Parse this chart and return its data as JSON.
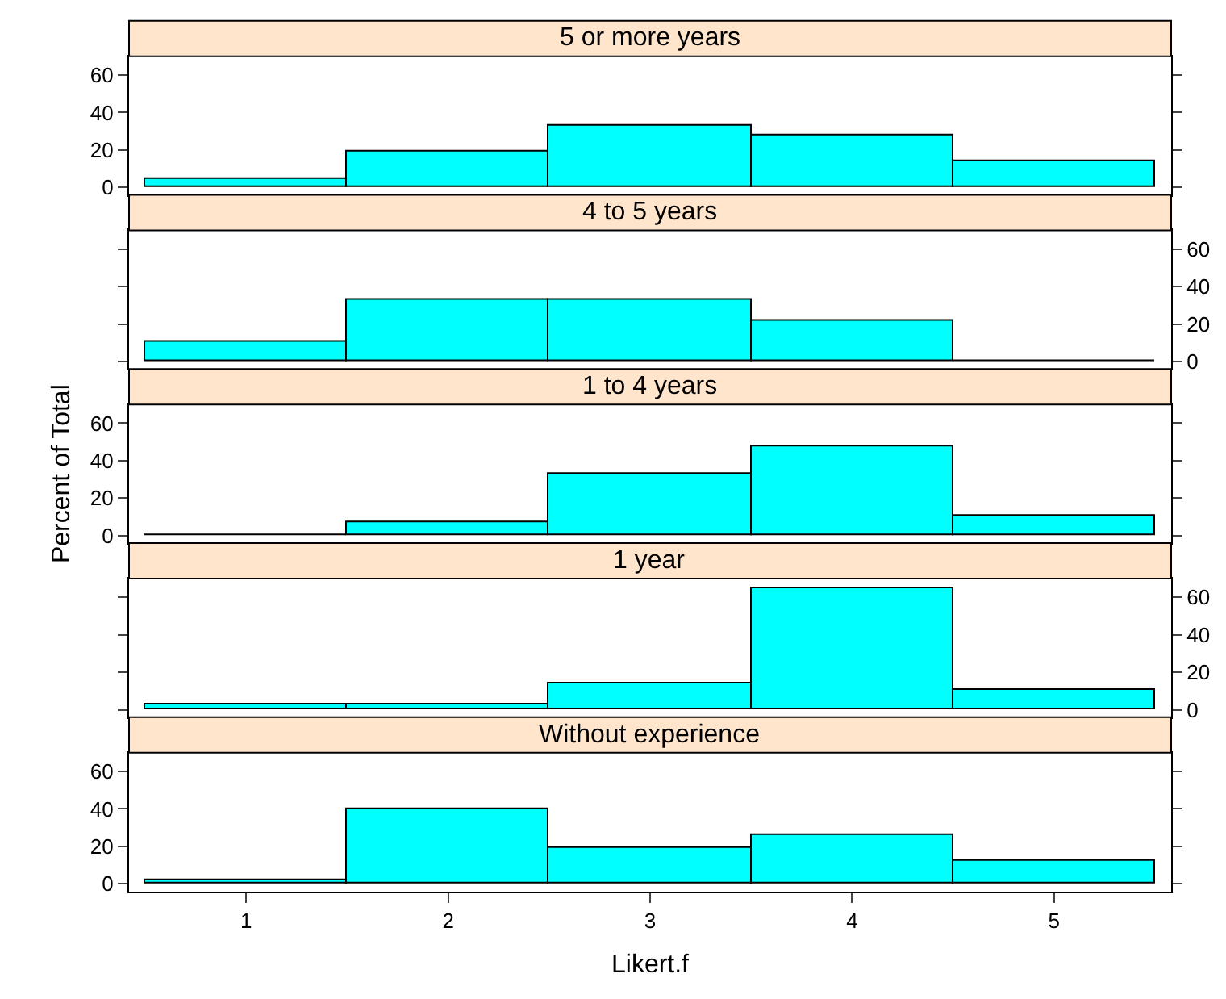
{
  "chart_data": [
    {
      "type": "histogram",
      "title": "5 or more years",
      "bins": [
        0.5,
        1.5,
        2.5,
        3.5,
        4.5,
        5.5
      ],
      "values": [
        5,
        19,
        33,
        28,
        14
      ],
      "color": "#00ffff",
      "xlim": [
        0.42,
        5.58
      ],
      "ylim": [
        -4,
        70
      ],
      "yticks": [
        0,
        20,
        40,
        60
      ],
      "tick_labels": "y"
    },
    {
      "type": "histogram",
      "title": "4 to 5 years",
      "bins": [
        0.5,
        1.5,
        2.5,
        3.5,
        4.5,
        5.5
      ],
      "values": [
        11,
        33,
        33,
        22,
        0
      ],
      "colors": [
        "#00ffff",
        "#00ffff",
        "#00ffff",
        "#00ffff",
        "#000000"
      ],
      "xlim": [
        0.42,
        5.58
      ],
      "ylim": [
        -4,
        70
      ],
      "yticks": [
        0,
        20,
        40,
        60
      ],
      "tick_labels": "y"
    },
    {
      "type": "histogram",
      "title": "1 to 4 years",
      "ylabel": "Percent of Total",
      "bins": [
        0.5,
        1.5,
        2.5,
        3.5,
        4.5,
        5.5
      ],
      "values": [
        0,
        7,
        33,
        48,
        11
      ],
      "colors": [
        "#000000",
        "#00ffff",
        "#00ffff",
        "#00ffff",
        "#00ffff"
      ],
      "xlim": [
        0.42,
        5.58
      ],
      "ylim": [
        -4,
        70
      ],
      "yticks": [
        0,
        20,
        40,
        60
      ],
      "tick_labels": "y"
    },
    {
      "type": "histogram",
      "title": "1 year",
      "bins": [
        0.5,
        1.5,
        2.5,
        3.5,
        4.5,
        5.5
      ],
      "values": [
        3,
        3,
        14,
        65,
        11
      ],
      "color": "#00ffff",
      "xlim": [
        0.42,
        5.58
      ],
      "ylim": [
        -4,
        70
      ],
      "yticks": [
        0,
        20,
        40,
        60
      ],
      "tick_labels": "y"
    },
    {
      "type": "histogram",
      "title": "Without experience",
      "xlabel": "Likert.f",
      "bins": [
        0.5,
        1.5,
        2.5,
        3.5,
        4.5,
        5.5
      ],
      "values": [
        2,
        40,
        19,
        26,
        12
      ],
      "color": "#00ffff",
      "xlim": [
        0.42,
        5.58
      ],
      "ylim": [
        -4,
        70
      ],
      "xticks": [
        1,
        2,
        3,
        4,
        5
      ],
      "yticks": [
        0,
        20,
        40,
        60
      ]
    }
  ]
}
